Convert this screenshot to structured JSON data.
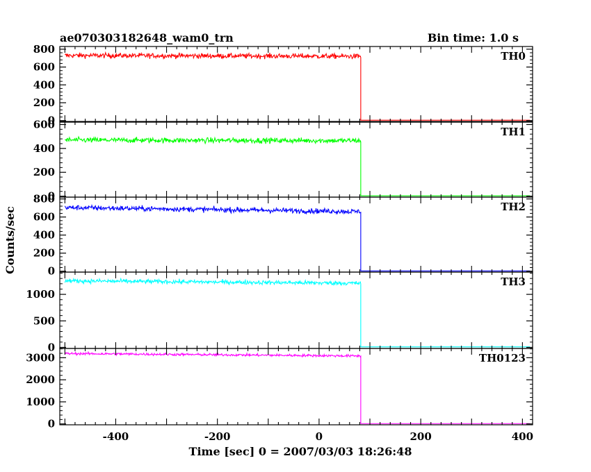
{
  "chart_data": {
    "type": "line",
    "title_left": "ae070303182648_wam0_trn",
    "title_right": "Bin time: 1.0 s",
    "xlabel": "Time [sec] 0 = 2007/03/03 18:26:48",
    "ylabel": "Counts/sec",
    "xlim": [
      -510,
      420
    ],
    "xticks": [
      -400,
      -200,
      0,
      200,
      400
    ],
    "x_step": 1.0,
    "x_start": -500,
    "drop_time": 82,
    "panels": [
      {
        "name": "TH0",
        "color": "#ff0000",
        "ylim": [
          -10,
          830
        ],
        "yticks": [
          0,
          200,
          400,
          600,
          800
        ],
        "level_start": 730,
        "level_end": 720,
        "noise": 28,
        "level_after": 4
      },
      {
        "name": "TH1",
        "color": "#00ff00",
        "ylim": [
          -8,
          620
        ],
        "yticks": [
          0,
          200,
          400,
          600
        ],
        "level_start": 470,
        "level_end": 465,
        "noise": 22,
        "level_after": 3
      },
      {
        "name": "TH2",
        "color": "#0000ff",
        "ylim": [
          -10,
          820
        ],
        "yticks": [
          0,
          200,
          400,
          600,
          800
        ],
        "level_start": 705,
        "level_end": 660,
        "noise": 28,
        "level_after": 3
      },
      {
        "name": "TH3",
        "color": "#00ffff",
        "ylim": [
          -20,
          1420
        ],
        "yticks": [
          0,
          500,
          1000
        ],
        "level_start": 1255,
        "level_end": 1210,
        "noise": 40,
        "level_after": 10
      },
      {
        "name": "TH0123",
        "color": "#ff00ff",
        "ylim": [
          -40,
          3420
        ],
        "yticks": [
          0,
          1000,
          2000,
          3000
        ],
        "level_start": 3190,
        "level_end": 3080,
        "noise": 55,
        "level_after": 15
      }
    ]
  }
}
